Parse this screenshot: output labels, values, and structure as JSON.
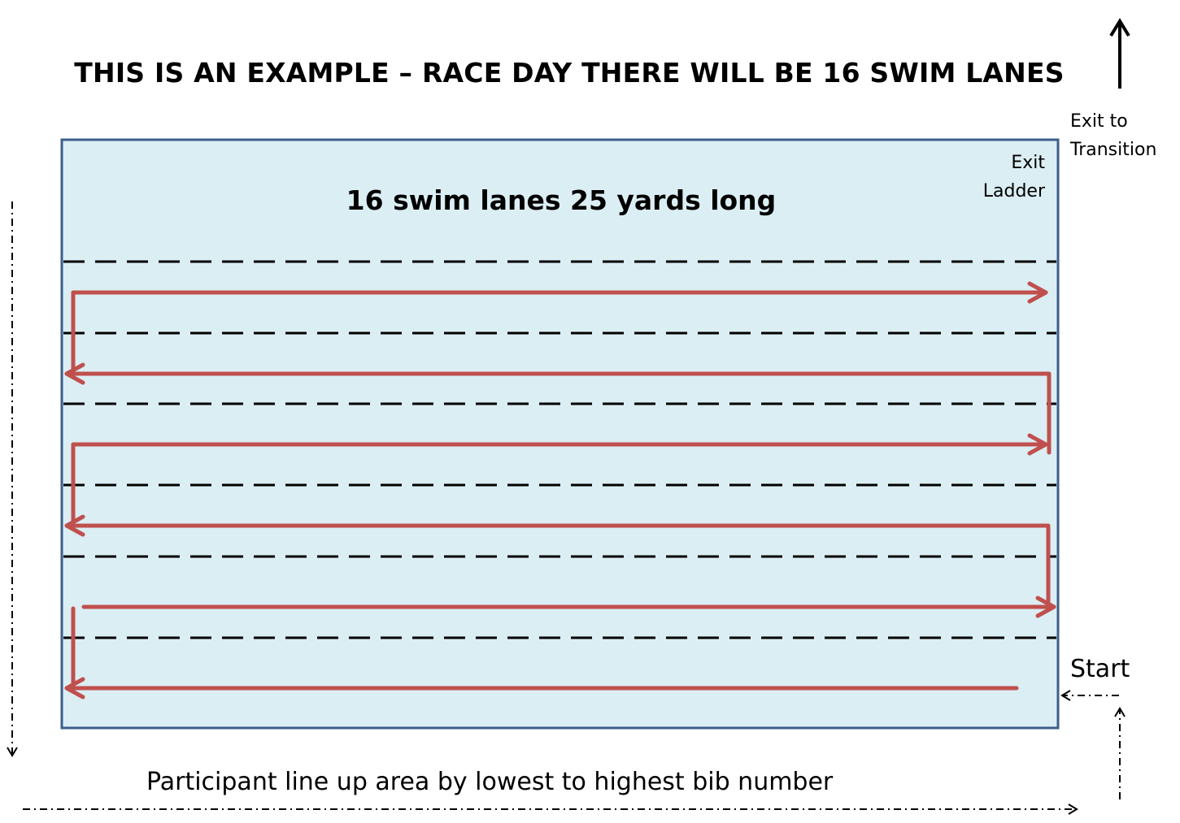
{
  "title": "THIS IS AN EXAMPLE – RACE DAY THERE WILL BE 16 SWIM LANES",
  "pool": {
    "heading": "16 swim lanes 25 yards long",
    "exit_ladder_line1": "Exit",
    "exit_ladder_line2": "Ladder"
  },
  "exit_transition": {
    "line1": "Exit to",
    "line2": "Transition"
  },
  "start_label": "Start",
  "lineup_label": "Participant line up area by lowest to highest bib number",
  "colors": {
    "pool_fill": "#dbeef4",
    "pool_border": "#3b5f8a",
    "swim_path": "#c0504d",
    "lane_rope": "#000000"
  }
}
